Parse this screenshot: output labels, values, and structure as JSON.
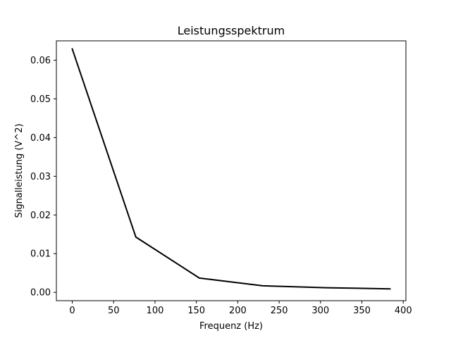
{
  "chart_data": {
    "type": "line",
    "title": "Leistungsspektrum",
    "xlabel": "Frequenz (Hz)",
    "ylabel": "Signalleistung  (V^2)",
    "xlim": [
      -19.2,
      403.2
    ],
    "ylim": [
      -0.00215,
      0.065
    ],
    "grid": false,
    "xticks": [
      0,
      50,
      100,
      150,
      200,
      250,
      300,
      350,
      400
    ],
    "xtick_labels": [
      "0",
      "50",
      "100",
      "150",
      "200",
      "250",
      "300",
      "350",
      "400"
    ],
    "yticks": [
      0.0,
      0.01,
      0.02,
      0.03,
      0.04,
      0.05,
      0.06
    ],
    "ytick_labels": [
      "0.00",
      "0.01",
      "0.02",
      "0.03",
      "0.04",
      "0.05",
      "0.06"
    ],
    "series": [
      {
        "color": "#000000",
        "x": [
          0,
          76.8,
          153.6,
          230.4,
          307.2,
          384.0
        ],
        "y": [
          0.0629,
          0.0143,
          0.0037,
          0.0017,
          0.0012,
          0.0009
        ]
      }
    ]
  }
}
